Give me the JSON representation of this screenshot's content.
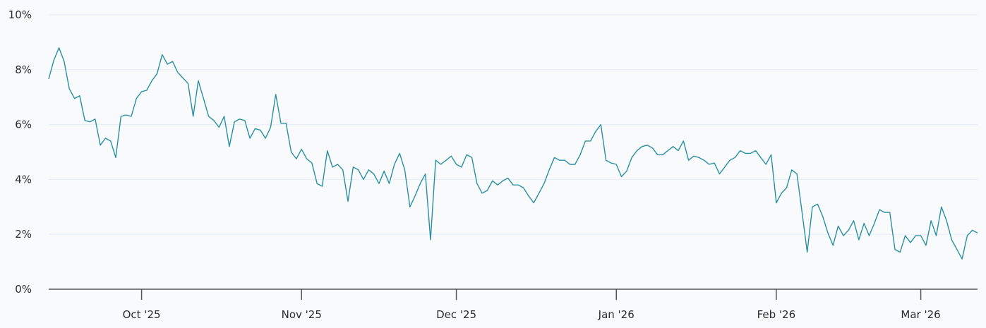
{
  "chart_data": {
    "type": "line",
    "title": "",
    "xlabel": "",
    "ylabel": "",
    "ylim": [
      0,
      10
    ],
    "xlim": [
      "2025-09-13",
      "2026-03-12"
    ],
    "grid": true,
    "y_ticks": [
      0,
      2,
      4,
      6,
      8,
      10
    ],
    "y_tick_labels": [
      "0%",
      "2%",
      "4%",
      "6%",
      "8%",
      "10%"
    ],
    "x_ticks": [
      "2025-10-01",
      "2025-11-01",
      "2025-12-01",
      "2026-01-01",
      "2026-02-01",
      "2026-03-01"
    ],
    "x_tick_labels": [
      "Oct '25",
      "Nov '25",
      "Dec '25",
      "Jan '26",
      "Feb '26",
      "Mar '26"
    ],
    "line_color": "#2a8fa3",
    "series": [
      {
        "points": [
          [
            "2025-09-13",
            7.66
          ],
          [
            "2025-09-14",
            8.35
          ],
          [
            "2025-09-15",
            8.8
          ],
          [
            "2025-09-16",
            8.3
          ],
          [
            "2025-09-17",
            7.3
          ],
          [
            "2025-09-18",
            6.95
          ],
          [
            "2025-09-19",
            7.05
          ],
          [
            "2025-09-20",
            6.15
          ],
          [
            "2025-09-21",
            6.1
          ],
          [
            "2025-09-22",
            6.2
          ],
          [
            "2025-09-23",
            5.25
          ],
          [
            "2025-09-24",
            5.5
          ],
          [
            "2025-09-25",
            5.4
          ],
          [
            "2025-09-26",
            4.8
          ],
          [
            "2025-09-27",
            6.3
          ],
          [
            "2025-09-28",
            6.35
          ],
          [
            "2025-09-29",
            6.3
          ],
          [
            "2025-09-30",
            6.95
          ],
          [
            "2025-10-01",
            7.2
          ],
          [
            "2025-10-02",
            7.25
          ],
          [
            "2025-10-03",
            7.6
          ],
          [
            "2025-10-04",
            7.85
          ],
          [
            "2025-10-05",
            8.55
          ],
          [
            "2025-10-06",
            8.2
          ],
          [
            "2025-10-07",
            8.3
          ],
          [
            "2025-10-08",
            7.9
          ],
          [
            "2025-10-09",
            7.7
          ],
          [
            "2025-10-10",
            7.5
          ],
          [
            "2025-10-11",
            6.3
          ],
          [
            "2025-10-12",
            7.6
          ],
          [
            "2025-10-13",
            6.95
          ],
          [
            "2025-10-14",
            6.3
          ],
          [
            "2025-10-15",
            6.15
          ],
          [
            "2025-10-16",
            5.9
          ],
          [
            "2025-10-17",
            6.3
          ],
          [
            "2025-10-18",
            5.2
          ],
          [
            "2025-10-19",
            6.1
          ],
          [
            "2025-10-20",
            6.2
          ],
          [
            "2025-10-21",
            6.15
          ],
          [
            "2025-10-22",
            5.5
          ],
          [
            "2025-10-23",
            5.85
          ],
          [
            "2025-10-24",
            5.8
          ],
          [
            "2025-10-25",
            5.5
          ],
          [
            "2025-10-26",
            5.9
          ],
          [
            "2025-10-27",
            7.1
          ],
          [
            "2025-10-28",
            6.05
          ],
          [
            "2025-10-29",
            6.05
          ],
          [
            "2025-10-30",
            5.0
          ],
          [
            "2025-10-31",
            4.75
          ],
          [
            "2025-11-01",
            5.1
          ],
          [
            "2025-11-02",
            4.75
          ],
          [
            "2025-11-03",
            4.6
          ],
          [
            "2025-11-04",
            3.85
          ],
          [
            "2025-11-05",
            3.75
          ],
          [
            "2025-11-06",
            5.05
          ],
          [
            "2025-11-07",
            4.45
          ],
          [
            "2025-11-08",
            4.55
          ],
          [
            "2025-11-09",
            4.35
          ],
          [
            "2025-11-10",
            3.2
          ],
          [
            "2025-11-11",
            4.45
          ],
          [
            "2025-11-12",
            4.35
          ],
          [
            "2025-11-13",
            4.0
          ],
          [
            "2025-11-14",
            4.35
          ],
          [
            "2025-11-15",
            4.2
          ],
          [
            "2025-11-16",
            3.85
          ],
          [
            "2025-11-17",
            4.3
          ],
          [
            "2025-11-18",
            3.85
          ],
          [
            "2025-11-19",
            4.55
          ],
          [
            "2025-11-20",
            4.95
          ],
          [
            "2025-11-21",
            4.35
          ],
          [
            "2025-11-22",
            3.0
          ],
          [
            "2025-11-23",
            3.4
          ],
          [
            "2025-11-24",
            3.85
          ],
          [
            "2025-11-25",
            4.2
          ],
          [
            "2025-11-26",
            1.8
          ],
          [
            "2025-11-27",
            4.7
          ],
          [
            "2025-11-28",
            4.55
          ],
          [
            "2025-11-29",
            4.7
          ],
          [
            "2025-11-30",
            4.85
          ],
          [
            "2025-12-01",
            4.55
          ],
          [
            "2025-12-02",
            4.45
          ],
          [
            "2025-12-03",
            4.9
          ],
          [
            "2025-12-04",
            4.8
          ],
          [
            "2025-12-05",
            3.85
          ],
          [
            "2025-12-06",
            3.5
          ],
          [
            "2025-12-07",
            3.6
          ],
          [
            "2025-12-08",
            3.95
          ],
          [
            "2025-12-09",
            3.8
          ],
          [
            "2025-12-10",
            3.95
          ],
          [
            "2025-12-11",
            4.05
          ],
          [
            "2025-12-12",
            3.8
          ],
          [
            "2025-12-13",
            3.8
          ],
          [
            "2025-12-14",
            3.7
          ],
          [
            "2025-12-15",
            3.4
          ],
          [
            "2025-12-16",
            3.15
          ],
          [
            "2025-12-17",
            3.5
          ],
          [
            "2025-12-18",
            3.85
          ],
          [
            "2025-12-19",
            4.35
          ],
          [
            "2025-12-20",
            4.8
          ],
          [
            "2025-12-21",
            4.7
          ],
          [
            "2025-12-22",
            4.7
          ],
          [
            "2025-12-23",
            4.55
          ],
          [
            "2025-12-24",
            4.55
          ],
          [
            "2025-12-25",
            4.9
          ],
          [
            "2025-12-26",
            5.4
          ],
          [
            "2025-12-27",
            5.4
          ],
          [
            "2025-12-28",
            5.75
          ],
          [
            "2025-12-29",
            6.0
          ],
          [
            "2025-12-30",
            4.7
          ],
          [
            "2025-12-31",
            4.6
          ],
          [
            "2026-01-01",
            4.55
          ],
          [
            "2026-01-02",
            4.1
          ],
          [
            "2026-01-03",
            4.3
          ],
          [
            "2026-01-04",
            4.8
          ],
          [
            "2026-01-05",
            5.05
          ],
          [
            "2026-01-06",
            5.2
          ],
          [
            "2026-01-07",
            5.25
          ],
          [
            "2026-01-08",
            5.15
          ],
          [
            "2026-01-09",
            4.9
          ],
          [
            "2026-01-10",
            4.9
          ],
          [
            "2026-01-11",
            5.05
          ],
          [
            "2026-01-12",
            5.2
          ],
          [
            "2026-01-13",
            5.05
          ],
          [
            "2026-01-14",
            5.4
          ],
          [
            "2026-01-15",
            4.7
          ],
          [
            "2026-01-16",
            4.85
          ],
          [
            "2026-01-17",
            4.8
          ],
          [
            "2026-01-18",
            4.7
          ],
          [
            "2026-01-19",
            4.55
          ],
          [
            "2026-01-20",
            4.6
          ],
          [
            "2026-01-21",
            4.2
          ],
          [
            "2026-01-22",
            4.45
          ],
          [
            "2026-01-23",
            4.7
          ],
          [
            "2026-01-24",
            4.8
          ],
          [
            "2026-01-25",
            5.05
          ],
          [
            "2026-01-26",
            4.95
          ],
          [
            "2026-01-27",
            4.95
          ],
          [
            "2026-01-28",
            5.05
          ],
          [
            "2026-01-29",
            4.8
          ],
          [
            "2026-01-30",
            4.55
          ],
          [
            "2026-01-31",
            4.9
          ],
          [
            "2026-02-01",
            3.15
          ],
          [
            "2026-02-02",
            3.5
          ],
          [
            "2026-02-03",
            3.7
          ],
          [
            "2026-02-04",
            4.35
          ],
          [
            "2026-02-05",
            4.2
          ],
          [
            "2026-02-06",
            2.8
          ],
          [
            "2026-02-07",
            1.35
          ],
          [
            "2026-02-08",
            3.0
          ],
          [
            "2026-02-09",
            3.1
          ],
          [
            "2026-02-10",
            2.65
          ],
          [
            "2026-02-11",
            2.05
          ],
          [
            "2026-02-12",
            1.6
          ],
          [
            "2026-02-13",
            2.3
          ],
          [
            "2026-02-14",
            1.95
          ],
          [
            "2026-02-15",
            2.15
          ],
          [
            "2026-02-16",
            2.5
          ],
          [
            "2026-02-17",
            1.8
          ],
          [
            "2026-02-18",
            2.4
          ],
          [
            "2026-02-19",
            1.95
          ],
          [
            "2026-02-20",
            2.4
          ],
          [
            "2026-02-21",
            2.9
          ],
          [
            "2026-02-22",
            2.8
          ],
          [
            "2026-02-23",
            2.8
          ],
          [
            "2026-02-24",
            1.45
          ],
          [
            "2026-02-25",
            1.35
          ],
          [
            "2026-02-26",
            1.95
          ],
          [
            "2026-02-27",
            1.7
          ],
          [
            "2026-02-28",
            1.95
          ],
          [
            "2026-03-01",
            1.95
          ],
          [
            "2026-03-02",
            1.6
          ],
          [
            "2026-03-03",
            2.5
          ],
          [
            "2026-03-04",
            1.95
          ],
          [
            "2026-03-05",
            3.0
          ],
          [
            "2026-03-06",
            2.5
          ],
          [
            "2026-03-07",
            1.8
          ],
          [
            "2026-03-08",
            1.45
          ],
          [
            "2026-03-09",
            1.1
          ],
          [
            "2026-03-10",
            1.95
          ],
          [
            "2026-03-11",
            2.15
          ],
          [
            "2026-03-12",
            2.05
          ]
        ]
      }
    ]
  }
}
